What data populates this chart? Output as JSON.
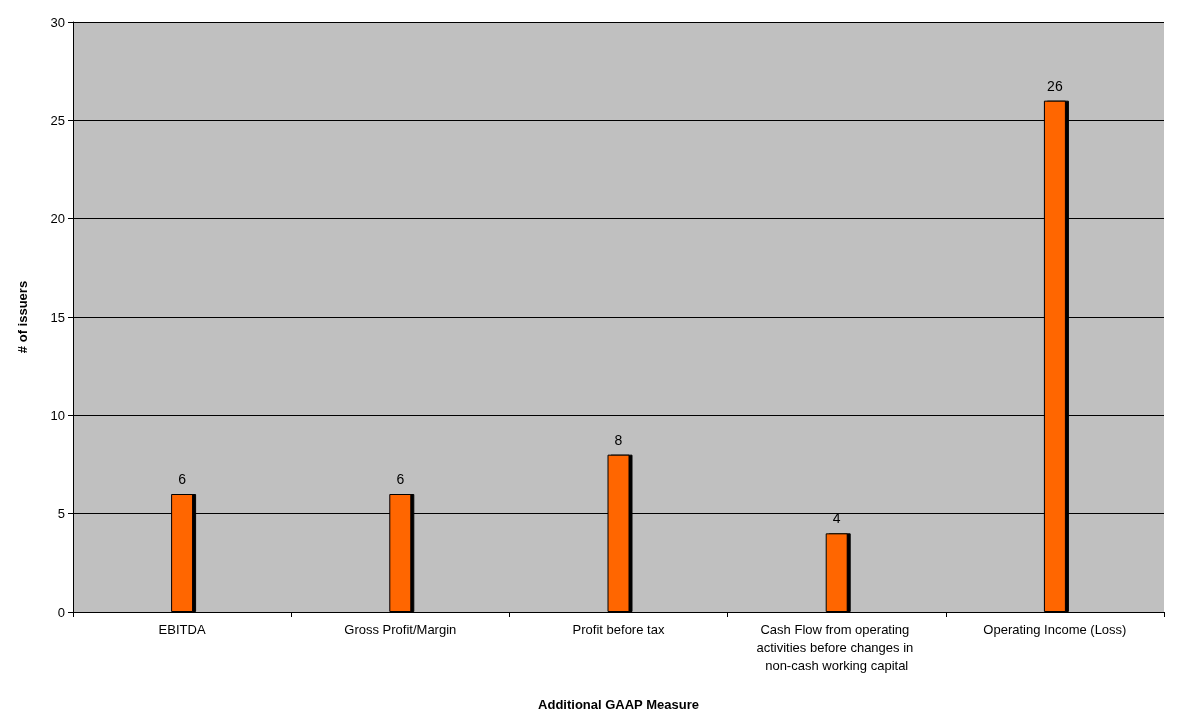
{
  "chart_data": {
    "type": "bar",
    "xlabel": "Additional GAAP Measure",
    "ylabel": "# of issuers",
    "categories": [
      "EBITDA",
      "Gross Profit/Margin",
      "Profit before tax",
      "Cash Flow from operating activities before changes in non-cash working capital",
      "Operating Income (Loss)"
    ],
    "values": [
      6,
      6,
      8,
      4,
      26
    ],
    "color": "#ff6600",
    "ylim": [
      0,
      30
    ],
    "yticks": [
      0,
      5,
      10,
      15,
      20,
      25,
      30
    ],
    "grid": "y",
    "data_labels": true
  }
}
